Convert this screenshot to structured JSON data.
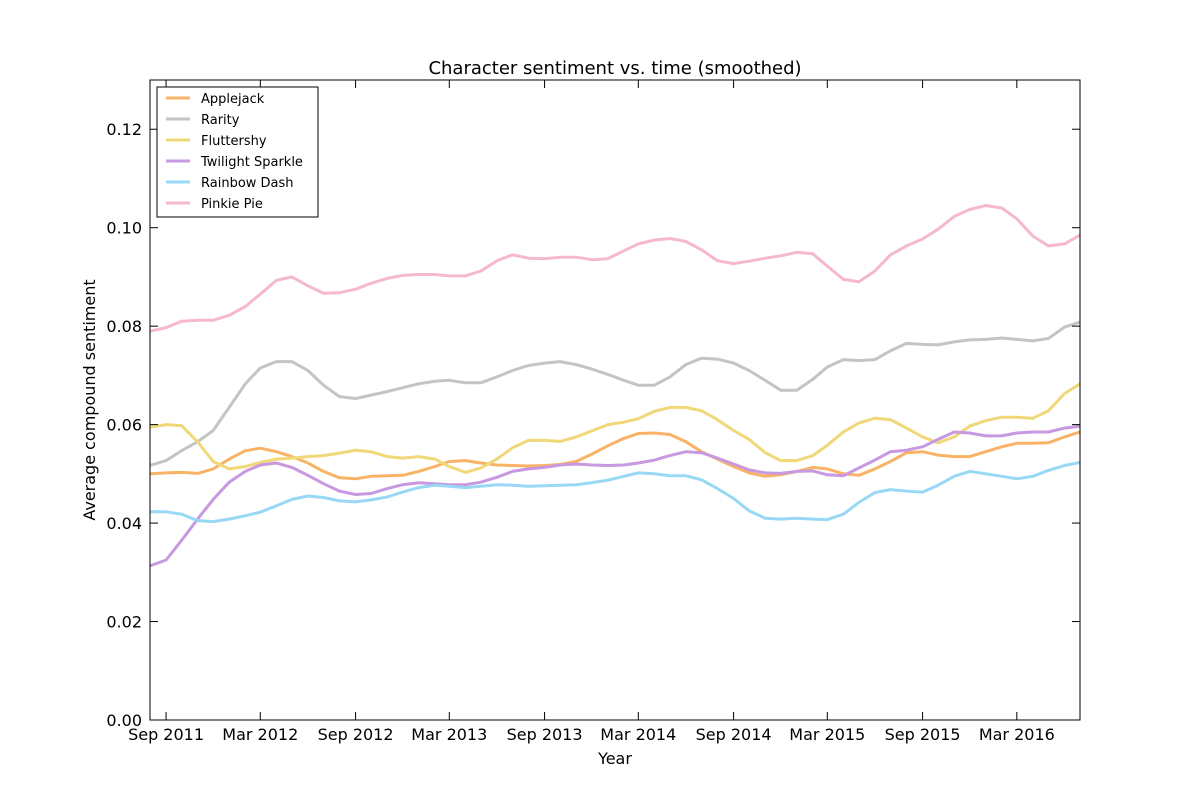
{
  "chart_data": {
    "type": "line",
    "title": "Character sentiment vs. time (smoothed)",
    "xlabel": "Year",
    "ylabel": "Average compound sentiment",
    "ylim": [
      0.0,
      0.13
    ],
    "xlim": [
      "2011-08-01",
      "2016-07-01"
    ],
    "x_tick_labels": [
      "Sep 2011",
      "Mar 2012",
      "Sep 2012",
      "Mar 2013",
      "Sep 2013",
      "Mar 2014",
      "Sep 2014",
      "Mar 2015",
      "Sep 2015",
      "Mar 2016"
    ],
    "x_tick_dates": [
      "2011-09-01",
      "2012-03-01",
      "2012-09-01",
      "2013-03-01",
      "2013-09-01",
      "2014-03-01",
      "2014-09-01",
      "2015-03-01",
      "2015-09-01",
      "2016-03-01"
    ],
    "y_ticks": [
      0.0,
      0.02,
      0.04,
      0.06,
      0.08,
      0.1,
      0.12
    ],
    "y_tick_labels": [
      "0.00",
      "0.02",
      "0.04",
      "0.06",
      "0.08",
      "0.10",
      "0.12"
    ],
    "grid": false,
    "legend_position": "top-left",
    "x": [
      "2011-08-01",
      "2011-09-01",
      "2011-10-01",
      "2011-11-01",
      "2011-12-01",
      "2012-01-01",
      "2012-02-01",
      "2012-03-01",
      "2012-04-01",
      "2012-05-01",
      "2012-06-01",
      "2012-07-01",
      "2012-08-01",
      "2012-09-01",
      "2012-10-01",
      "2012-11-01",
      "2012-12-01",
      "2013-01-01",
      "2013-02-01",
      "2013-03-01",
      "2013-04-01",
      "2013-05-01",
      "2013-06-01",
      "2013-07-01",
      "2013-08-01",
      "2013-09-01",
      "2013-10-01",
      "2013-11-01",
      "2013-12-01",
      "2014-01-01",
      "2014-02-01",
      "2014-03-01",
      "2014-04-01",
      "2014-05-01",
      "2014-06-01",
      "2014-07-01",
      "2014-08-01",
      "2014-09-01",
      "2014-10-01",
      "2014-11-01",
      "2014-12-01",
      "2015-01-01",
      "2015-02-01",
      "2015-03-01",
      "2015-04-01",
      "2015-05-01",
      "2015-06-01",
      "2015-07-01",
      "2015-08-01",
      "2015-09-01",
      "2015-10-01",
      "2015-11-01",
      "2015-12-01",
      "2016-01-01",
      "2016-02-01",
      "2016-03-01",
      "2016-04-01",
      "2016-05-01",
      "2016-06-01",
      "2016-07-01"
    ],
    "series": [
      {
        "name": "Applejack",
        "color": "#F9B366",
        "values": [
          0.05,
          0.0502,
          0.0503,
          0.0501,
          0.051,
          0.053,
          0.0547,
          0.0552,
          0.0545,
          0.0535,
          0.0522,
          0.0505,
          0.0492,
          0.049,
          0.0495,
          0.0496,
          0.0497,
          0.0505,
          0.0515,
          0.0525,
          0.0527,
          0.0522,
          0.0518,
          0.0517,
          0.0516,
          0.0517,
          0.0519,
          0.0525,
          0.054,
          0.0557,
          0.0572,
          0.0582,
          0.0583,
          0.058,
          0.0565,
          0.0545,
          0.053,
          0.0515,
          0.0502,
          0.0495,
          0.0498,
          0.0505,
          0.0513,
          0.051,
          0.05,
          0.0497,
          0.051,
          0.0525,
          0.0543,
          0.0545,
          0.0538,
          0.0535,
          0.0535,
          0.0545,
          0.0555,
          0.0562,
          0.0562,
          0.0563,
          0.0575,
          0.0585
        ]
      },
      {
        "name": "Rarity",
        "color": "#C4C4C4",
        "values": [
          0.0517,
          0.0527,
          0.0547,
          0.0565,
          0.0588,
          0.0635,
          0.0683,
          0.0715,
          0.0728,
          0.0728,
          0.071,
          0.068,
          0.0657,
          0.0653,
          0.066,
          0.0667,
          0.0675,
          0.0683,
          0.0688,
          0.069,
          0.0685,
          0.0685,
          0.0697,
          0.071,
          0.072,
          0.0725,
          0.0728,
          0.0722,
          0.0713,
          0.0702,
          0.069,
          0.068,
          0.068,
          0.0697,
          0.0722,
          0.0735,
          0.0733,
          0.0725,
          0.071,
          0.069,
          0.067,
          0.067,
          0.0692,
          0.0717,
          0.0732,
          0.073,
          0.0732,
          0.075,
          0.0765,
          0.0763,
          0.0762,
          0.0768,
          0.0772,
          0.0773,
          0.0776,
          0.0773,
          0.077,
          0.0775,
          0.0798,
          0.0808
        ]
      },
      {
        "name": "Fluttershy",
        "color": "#F0D878",
        "values": [
          0.0595,
          0.06,
          0.0598,
          0.0565,
          0.0525,
          0.051,
          0.0515,
          0.0523,
          0.053,
          0.0532,
          0.0535,
          0.0537,
          0.0542,
          0.0548,
          0.0545,
          0.0535,
          0.0532,
          0.0535,
          0.053,
          0.0515,
          0.0503,
          0.0512,
          0.053,
          0.0553,
          0.0568,
          0.0568,
          0.0566,
          0.0575,
          0.0587,
          0.06,
          0.0605,
          0.0612,
          0.0627,
          0.0635,
          0.0635,
          0.0628,
          0.061,
          0.0588,
          0.057,
          0.0543,
          0.0527,
          0.0527,
          0.0537,
          0.0558,
          0.0585,
          0.0603,
          0.0613,
          0.061,
          0.0593,
          0.0575,
          0.0563,
          0.0575,
          0.0597,
          0.0608,
          0.0615,
          0.0615,
          0.0613,
          0.0628,
          0.0663,
          0.0683
        ]
      },
      {
        "name": "Twilight Sparkle",
        "color": "#C898E0",
        "values": [
          0.0313,
          0.0325,
          0.0365,
          0.0408,
          0.0448,
          0.0483,
          0.0505,
          0.0518,
          0.0522,
          0.0513,
          0.0497,
          0.048,
          0.0465,
          0.0458,
          0.046,
          0.047,
          0.0478,
          0.0482,
          0.048,
          0.0478,
          0.0478,
          0.0483,
          0.0493,
          0.0505,
          0.051,
          0.0513,
          0.0518,
          0.052,
          0.0518,
          0.0517,
          0.0518,
          0.0522,
          0.0528,
          0.0537,
          0.0545,
          0.0543,
          0.0532,
          0.052,
          0.0508,
          0.0502,
          0.0501,
          0.0505,
          0.0506,
          0.0498,
          0.0496,
          0.0512,
          0.0528,
          0.0545,
          0.0548,
          0.0555,
          0.057,
          0.0585,
          0.0583,
          0.0577,
          0.0577,
          0.0583,
          0.0585,
          0.0585,
          0.0593,
          0.0597
        ]
      },
      {
        "name": "Rainbow Dash",
        "color": "#98D8F5",
        "values": [
          0.0423,
          0.0423,
          0.0418,
          0.0405,
          0.0403,
          0.0408,
          0.0415,
          0.0422,
          0.0435,
          0.0448,
          0.0455,
          0.0452,
          0.0445,
          0.0443,
          0.0447,
          0.0453,
          0.0463,
          0.0472,
          0.0477,
          0.0475,
          0.0472,
          0.0475,
          0.0478,
          0.0477,
          0.0475,
          0.0476,
          0.0477,
          0.0478,
          0.0482,
          0.0487,
          0.0495,
          0.0502,
          0.05,
          0.0496,
          0.0496,
          0.0488,
          0.047,
          0.045,
          0.0425,
          0.041,
          0.0408,
          0.041,
          0.0408,
          0.0407,
          0.0418,
          0.0442,
          0.0462,
          0.0468,
          0.0465,
          0.0463,
          0.0477,
          0.0495,
          0.0505,
          0.05,
          0.0495,
          0.049,
          0.0495,
          0.0507,
          0.0517,
          0.0523
        ]
      },
      {
        "name": "Pinkie Pie",
        "color": "#F5B8CF",
        "values": [
          0.079,
          0.0797,
          0.081,
          0.0812,
          0.0812,
          0.0822,
          0.084,
          0.0865,
          0.0893,
          0.09,
          0.0882,
          0.0867,
          0.0868,
          0.0875,
          0.0887,
          0.0897,
          0.0903,
          0.0905,
          0.0905,
          0.0902,
          0.0902,
          0.0912,
          0.0933,
          0.0945,
          0.0938,
          0.0937,
          0.094,
          0.094,
          0.0935,
          0.0937,
          0.0953,
          0.0967,
          0.0975,
          0.0978,
          0.0972,
          0.0955,
          0.0933,
          0.0927,
          0.0932,
          0.0938,
          0.0943,
          0.095,
          0.0947,
          0.0922,
          0.0895,
          0.089,
          0.0912,
          0.0945,
          0.0963,
          0.0977,
          0.0997,
          0.1023,
          0.1037,
          0.1045,
          0.104,
          0.1018,
          0.0983,
          0.0963,
          0.0967,
          0.0985
        ]
      }
    ]
  }
}
